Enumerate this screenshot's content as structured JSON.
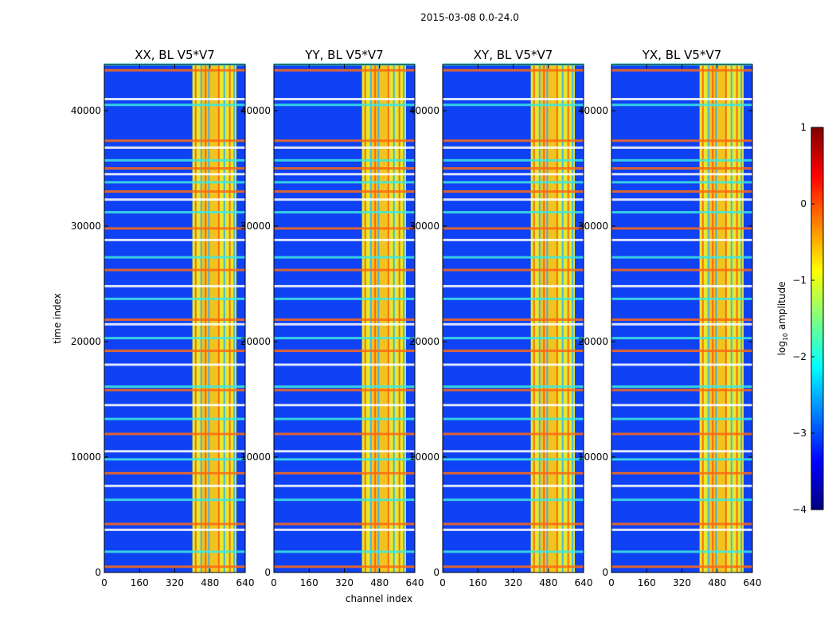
{
  "chart_data": {
    "type": "heatmap",
    "suptitle": "2015-03-08 0.0-24.0",
    "xlabel": "channel index",
    "ylabel": "time index",
    "xlim": [
      0,
      640
    ],
    "ylim": [
      0,
      44000
    ],
    "xticks": [
      "0",
      "160",
      "320",
      "480",
      "640"
    ],
    "xtick_values": [
      0,
      160,
      320,
      480,
      640
    ],
    "yticks": [
      "0",
      "10000",
      "20000",
      "30000",
      "40000"
    ],
    "ytick_values": [
      0,
      10000,
      20000,
      30000,
      40000
    ],
    "panels": [
      {
        "title": "XX, BL V5*V7"
      },
      {
        "title": "YY, BL V5*V7"
      },
      {
        "title": "XY, BL V5*V7"
      },
      {
        "title": "YX, BL V5*V7"
      }
    ],
    "colorbar": {
      "label": "log10 amplitude",
      "label_main": "log",
      "label_sub": "10",
      "label_rest": " amplitude",
      "range": [
        -4,
        1
      ],
      "ticks": [
        "1",
        "0",
        "−1",
        "−2",
        "−3",
        "−4"
      ],
      "tick_values": [
        1,
        0,
        -1,
        -2,
        -3,
        -4
      ],
      "colors": [
        "#00007f",
        "#0000ff",
        "#007fff",
        "#00ffff",
        "#7fff7f",
        "#ffff00",
        "#ff7f00",
        "#ff0000",
        "#7f0000"
      ]
    },
    "band_channels": [
      400,
      600
    ],
    "horizontal_band_times": [
      500,
      1800,
      3700,
      4200,
      6300,
      7500,
      8600,
      9800,
      10500,
      12000,
      13300,
      14500,
      15800,
      16100,
      18000,
      19200,
      20300,
      21500,
      21900,
      23700,
      24800,
      26200,
      27300,
      28800,
      29800,
      31200,
      32300,
      33000,
      33800,
      34500,
      35000,
      35700,
      36800,
      37400,
      40500,
      41000,
      43500,
      44000
    ],
    "vertical_band_channels": [
      415,
      440,
      460,
      475,
      520,
      545,
      570,
      590
    ]
  }
}
